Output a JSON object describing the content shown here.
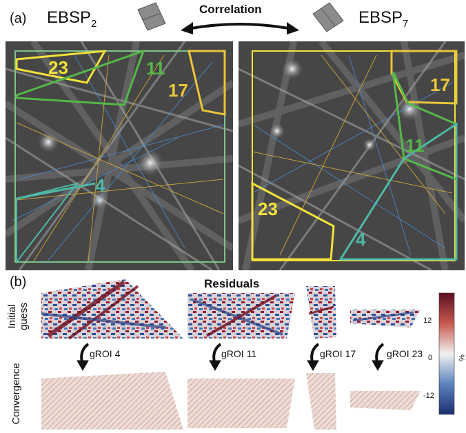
{
  "panel_a": {
    "label": "(a)",
    "left_title": "EBSP",
    "left_sub": "2",
    "right_title": "EBSP",
    "right_sub": "7",
    "arrow_label": "Correlation",
    "left_regions": [
      {
        "id": "23",
        "color": "#f1e23a"
      },
      {
        "id": "11",
        "color": "#56b74a"
      },
      {
        "id": "17",
        "color": "#e9c63a"
      },
      {
        "id": "4",
        "color": "#4fb8a6"
      }
    ],
    "right_regions": [
      {
        "id": "17",
        "color": "#e9c63a"
      },
      {
        "id": "11",
        "color": "#56b74a"
      },
      {
        "id": "23",
        "color": "#f1e23a"
      },
      {
        "id": "4",
        "color": "#4fb8a6"
      }
    ]
  },
  "panel_b": {
    "label": "(b)",
    "title": "Residuals",
    "row_initial": [
      "Initial",
      "guess"
    ],
    "row_converged": "Convergence",
    "groi_labels": [
      "gROI 4",
      "gROI 11",
      "gROI 17",
      "gROI 23"
    ],
    "colorbar": {
      "unit": "%",
      "ticks": [
        "12",
        "0",
        "-12"
      ],
      "top_color": "#5c0f22",
      "mid_color": "#f1f1ef",
      "bottom_color": "#1d2f6e"
    }
  }
}
